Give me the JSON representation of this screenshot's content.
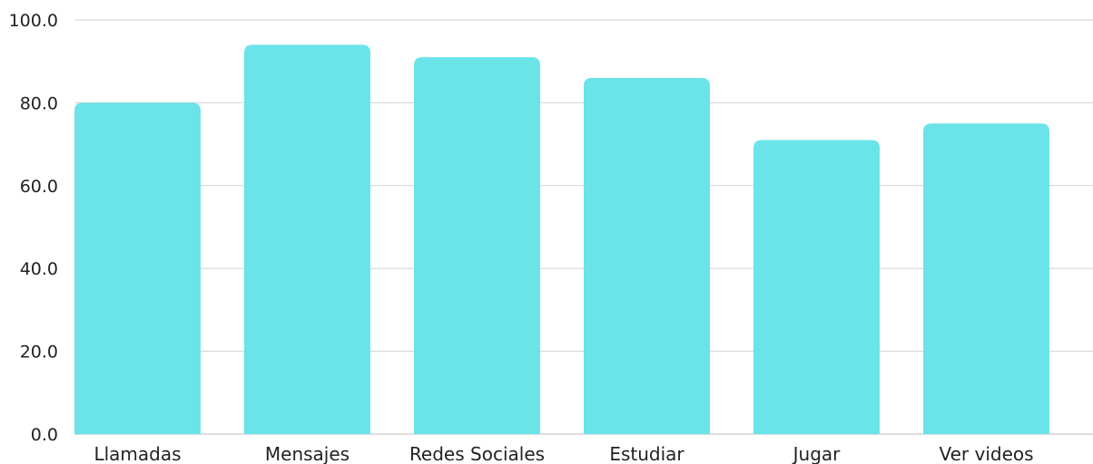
{
  "chart_data": {
    "type": "bar",
    "categories": [
      "Llamadas",
      "Mensajes",
      "Redes Sociales",
      "Estudiar",
      "Jugar",
      "Ver videos"
    ],
    "values": [
      80,
      94,
      91,
      86,
      71,
      75
    ],
    "y_ticks": [
      "0.0",
      "20.0",
      "40.0",
      "60.0",
      "80.0",
      "100.0"
    ],
    "ylim": [
      0,
      100
    ],
    "grid": true,
    "colors": {
      "bar": "#6ae4e8",
      "grid": "#d0d0d0",
      "text": "#222222"
    }
  }
}
